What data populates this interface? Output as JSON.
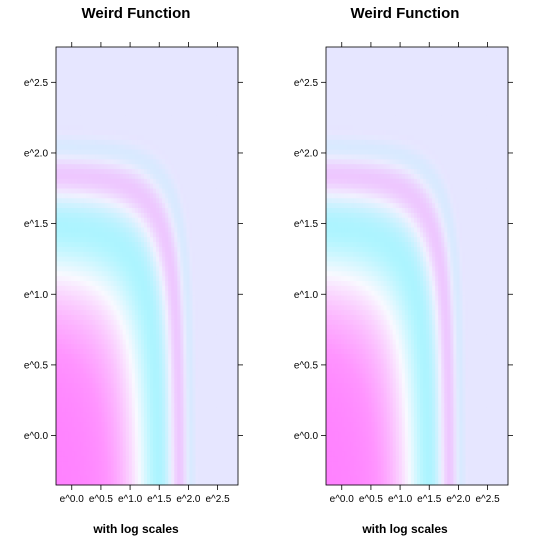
{
  "chart_data": [
    {
      "type": "heatmap",
      "title": "Weird Function",
      "xlabel": "with log scales",
      "ylabel": "",
      "x_scale": "log",
      "y_scale": "log",
      "xlim_log": [
        -0.27,
        2.85
      ],
      "ylim_log": [
        -0.35,
        2.75
      ],
      "x_ticks": [
        {
          "value": 0.0,
          "label": "e^0.0"
        },
        {
          "value": 0.5,
          "label": "e^0.5"
        },
        {
          "value": 1.0,
          "label": "e^1.0"
        },
        {
          "value": 1.5,
          "label": "e^1.5"
        },
        {
          "value": 2.0,
          "label": "e^2.0"
        },
        {
          "value": 2.5,
          "label": "e^2.5"
        }
      ],
      "y_ticks": [
        {
          "value": 0.0,
          "label": "e^0.0"
        },
        {
          "value": 0.5,
          "label": "e^0.5"
        },
        {
          "value": 1.0,
          "label": "e^1.0"
        },
        {
          "value": 1.5,
          "label": "e^1.5"
        },
        {
          "value": 2.0,
          "label": "e^2.0"
        },
        {
          "value": 2.5,
          "label": "e^2.5"
        }
      ],
      "colors": {
        "low": "#80ffff",
        "high": "#ff80ff",
        "mid": "#ffffff",
        "far": "#e6e6ff"
      }
    },
    {
      "type": "heatmap",
      "title": "Weird Function",
      "xlabel": "with log scales",
      "ylabel": "",
      "x_scale": "log",
      "y_scale": "log",
      "xlim_log": [
        -0.27,
        2.85
      ],
      "ylim_log": [
        -0.35,
        2.75
      ],
      "x_ticks": [
        {
          "value": 0.0,
          "label": "e^0.0"
        },
        {
          "value": 0.5,
          "label": "e^0.5"
        },
        {
          "value": 1.0,
          "label": "e^1.0"
        },
        {
          "value": 1.5,
          "label": "e^1.5"
        },
        {
          "value": 2.0,
          "label": "e^2.0"
        },
        {
          "value": 2.5,
          "label": "e^2.5"
        }
      ],
      "y_ticks": [
        {
          "value": 0.0,
          "label": "e^0.0"
        },
        {
          "value": 0.5,
          "label": "e^0.5"
        },
        {
          "value": 1.0,
          "label": "e^1.0"
        },
        {
          "value": 1.5,
          "label": "e^1.5"
        },
        {
          "value": 2.0,
          "label": "e^2.0"
        },
        {
          "value": 2.5,
          "label": "e^2.5"
        }
      ],
      "colors": {
        "low": "#80ffff",
        "high": "#ff80ff",
        "mid": "#ffffff",
        "far": "#e6e6ff"
      }
    }
  ]
}
